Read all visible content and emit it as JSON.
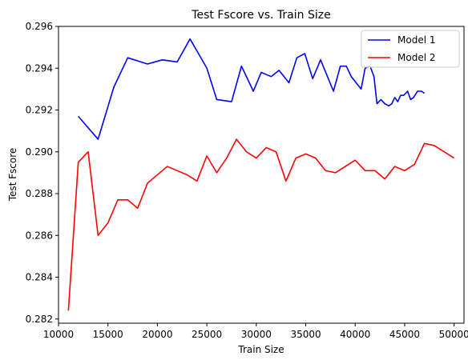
{
  "chart_data": {
    "type": "line",
    "title": "Test Fscore vs. Train Size",
    "xlabel": "Train Size",
    "ylabel": "Test Fscore",
    "xlim": [
      10000,
      51000
    ],
    "ylim": [
      0.2818,
      0.296
    ],
    "xticks": [
      10000,
      15000,
      20000,
      25000,
      30000,
      35000,
      40000,
      45000,
      50000
    ],
    "xtick_labels": [
      "10000",
      "15000",
      "20000",
      "25000",
      "30000",
      "35000",
      "40000",
      "45000",
      "50000"
    ],
    "yticks": [
      0.282,
      0.284,
      0.286,
      0.288,
      0.29,
      0.292,
      0.294,
      0.296
    ],
    "ytick_labels": [
      "0.282",
      "0.284",
      "0.286",
      "0.288",
      "0.290",
      "0.292",
      "0.294",
      "0.296"
    ],
    "grid": false,
    "legend_position": "top-right",
    "series": [
      {
        "name": "Model 1",
        "color": "#0000ff",
        "x": [
          12000,
          14000,
          15600,
          17000,
          19000,
          20500,
          22000,
          23300,
          25000,
          26000,
          27500,
          28500,
          29700,
          30500,
          31500,
          32300,
          33300,
          34100,
          34900,
          35700,
          36500,
          37800,
          38500,
          39100,
          39600,
          40600,
          41000,
          41500,
          41900,
          42200,
          42600,
          43000,
          43400,
          43700,
          44000,
          44300,
          44600,
          44900,
          45300,
          45600,
          45900,
          46300,
          46700,
          47000
        ],
        "y": [
          0.2917,
          0.2906,
          0.2931,
          0.2945,
          0.2942,
          0.2944,
          0.2943,
          0.2954,
          0.294,
          0.2925,
          0.2924,
          0.2941,
          0.2929,
          0.2938,
          0.2936,
          0.2939,
          0.2933,
          0.2945,
          0.2947,
          0.2935,
          0.2944,
          0.2929,
          0.2941,
          0.2941,
          0.2936,
          0.293,
          0.294,
          0.2941,
          0.2936,
          0.2923,
          0.2925,
          0.2923,
          0.2922,
          0.2923,
          0.2926,
          0.2924,
          0.2927,
          0.2927,
          0.2929,
          0.2925,
          0.2926,
          0.2929,
          0.2929,
          0.2928
        ]
      },
      {
        "name": "Model 2",
        "color": "#ff0000",
        "x": [
          11000,
          12000,
          13000,
          14000,
          15000,
          16000,
          17000,
          18000,
          19000,
          21000,
          23000,
          24000,
          25000,
          26000,
          27000,
          28000,
          29000,
          30000,
          31000,
          32000,
          33000,
          34000,
          35000,
          36000,
          37000,
          38000,
          40000,
          41000,
          42000,
          43000,
          44000,
          45000,
          46000,
          47000,
          48000,
          50000
        ],
        "y": [
          0.2824,
          0.2895,
          0.29,
          0.286,
          0.2866,
          0.2877,
          0.2877,
          0.2873,
          0.2885,
          0.2893,
          0.2889,
          0.2886,
          0.2898,
          0.289,
          0.2897,
          0.2906,
          0.29,
          0.2897,
          0.2902,
          0.29,
          0.2886,
          0.2897,
          0.2899,
          0.2897,
          0.2891,
          0.289,
          0.2896,
          0.2891,
          0.2891,
          0.2887,
          0.2893,
          0.2891,
          0.2894,
          0.2904,
          0.2903,
          0.2897
        ]
      }
    ]
  }
}
